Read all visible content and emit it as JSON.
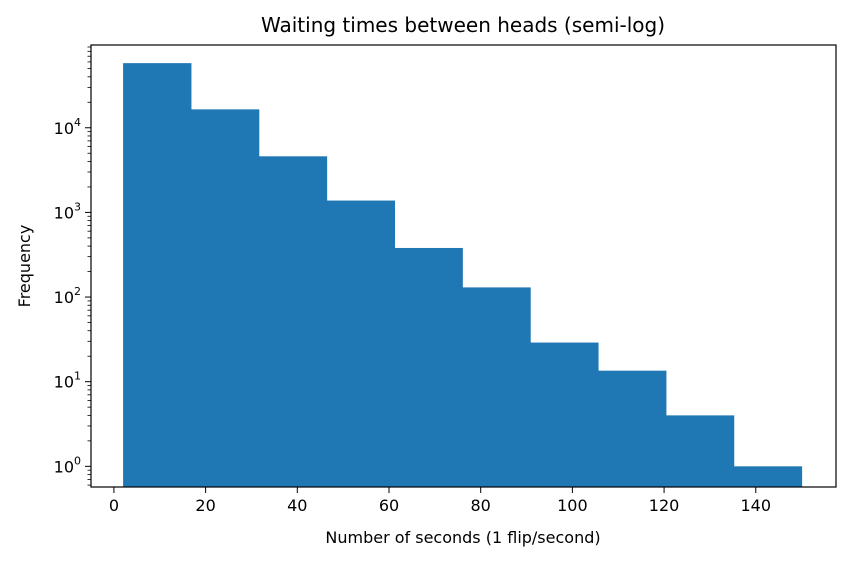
{
  "chart_data": {
    "type": "bar",
    "title": "Waiting times between heads (semi-log)",
    "xlabel": "Number of seconds (1 flip/second)",
    "ylabel": "Frequency",
    "yscale": "log",
    "xlim": [
      -5,
      157.5
    ],
    "ylim": [
      0.57,
      95000
    ],
    "bin_edges": [
      2,
      16.8,
      31.6,
      46.4,
      61.2,
      76,
      90.8,
      105.6,
      120.4,
      135.2,
      150
    ],
    "values": [
      58000,
      16500,
      4600,
      1380,
      380,
      130,
      29,
      13.5,
      4,
      1
    ],
    "color": "#1f77b4",
    "xticks": [
      0,
      20,
      40,
      60,
      80,
      100,
      120,
      140
    ],
    "xtick_labels": [
      "0",
      "20",
      "40",
      "60",
      "80",
      "100",
      "120",
      "140"
    ],
    "yticks": [
      1,
      10,
      100,
      1000,
      10000
    ],
    "ytick_labels": [
      {
        "base": "10",
        "exp": "0"
      },
      {
        "base": "10",
        "exp": "1"
      },
      {
        "base": "10",
        "exp": "2"
      },
      {
        "base": "10",
        "exp": "3"
      },
      {
        "base": "10",
        "exp": "4"
      }
    ],
    "grid": false,
    "legend": "none"
  }
}
